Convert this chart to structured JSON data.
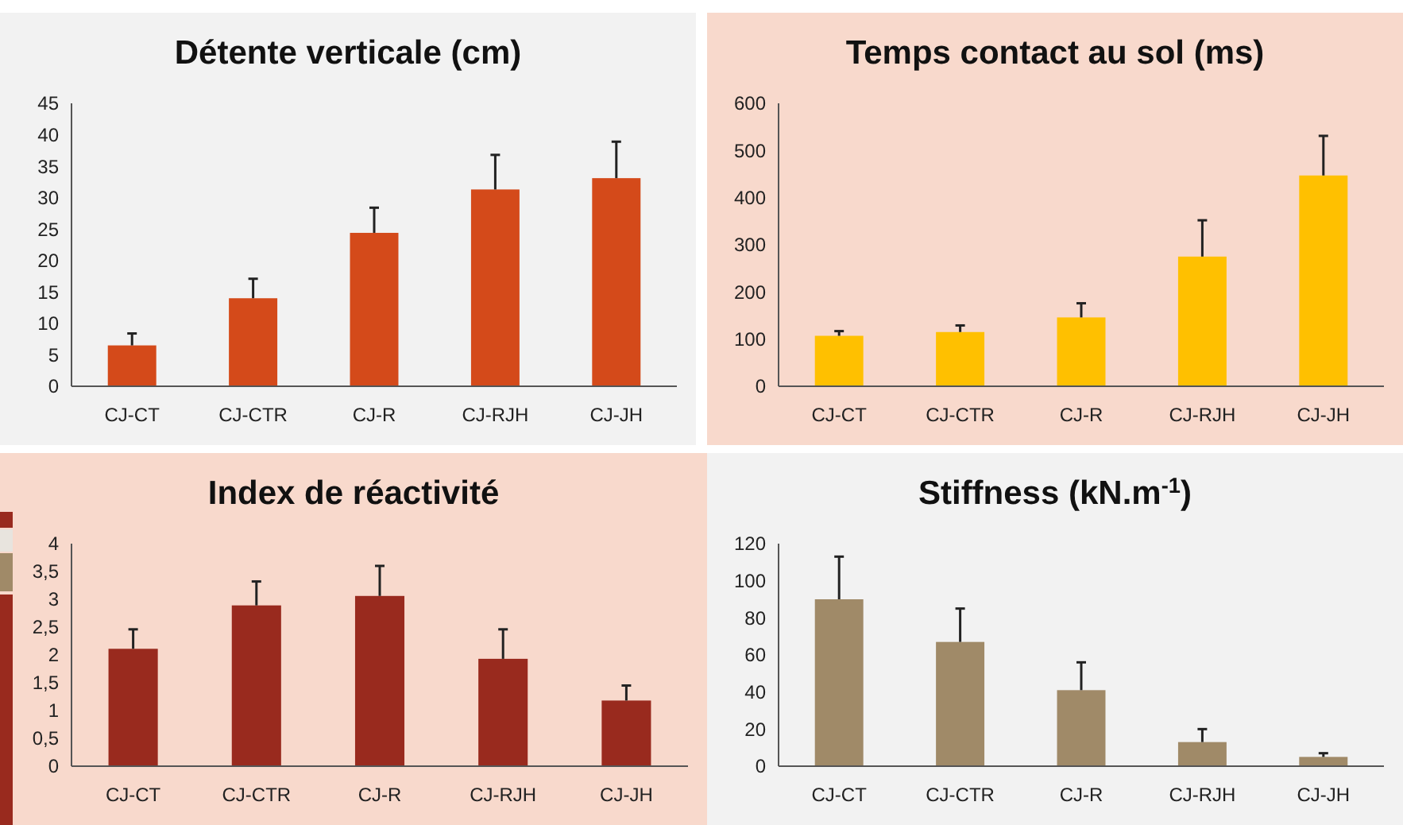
{
  "chart_data": [
    {
      "type": "bar",
      "title": "Détente verticale (cm)",
      "categories": [
        "CJ-CT",
        "CJ-CTR",
        "CJ-R",
        "CJ-RJH",
        "CJ-JH"
      ],
      "values": [
        6.5,
        14.0,
        24.4,
        31.3,
        33.1
      ],
      "errors": [
        [
          6.5,
          8.4
        ],
        [
          14.0,
          17.1
        ],
        [
          24.4,
          28.4
        ],
        [
          31.3,
          36.8
        ],
        [
          33.1,
          38.9
        ]
      ],
      "color": "#d44a1a",
      "ylim": [
        0,
        45
      ],
      "yticks": [
        0,
        5,
        10,
        15,
        20,
        25,
        30,
        35,
        40,
        45
      ]
    },
    {
      "type": "bar",
      "title": "Temps contact au sol (ms)",
      "categories": [
        "CJ-CT",
        "CJ-CTR",
        "CJ-R",
        "CJ-RJH",
        "CJ-JH"
      ],
      "values": [
        107,
        115,
        146,
        275,
        447
      ],
      "errors": [
        [
          107,
          117
        ],
        [
          115,
          129
        ],
        [
          146,
          176
        ],
        [
          275,
          352
        ],
        [
          447,
          531
        ]
      ],
      "color": "#ffc000",
      "ylim": [
        0,
        600
      ],
      "yticks": [
        0,
        100,
        200,
        300,
        400,
        500,
        600
      ]
    },
    {
      "type": "bar",
      "title": "Index de réactivité",
      "categories": [
        "CJ-CT",
        "CJ-CTR",
        "CJ-R",
        "CJ-RJH",
        "CJ-JH"
      ],
      "values": [
        2.11,
        2.89,
        3.06,
        1.93,
        1.18
      ],
      "errors": [
        [
          2.11,
          2.46
        ],
        [
          2.89,
          3.32
        ],
        [
          3.06,
          3.6
        ],
        [
          1.93,
          2.46
        ],
        [
          1.18,
          1.45
        ]
      ],
      "color": "#992a1e",
      "ylim": [
        0,
        4
      ],
      "yticks": [
        0,
        {
          "value": 0.5,
          "label": "0,5"
        },
        1,
        {
          "value": 1.5,
          "label": "1,5"
        },
        2,
        {
          "value": 2.5,
          "label": "2,5"
        },
        3,
        {
          "value": 3.5,
          "label": "3,5"
        },
        4
      ]
    },
    {
      "type": "bar",
      "title": "Stiffness (kN.m$^{-1}$)",
      "categories": [
        "CJ-CT",
        "CJ-CTR",
        "CJ-R",
        "CJ-RJH",
        "CJ-JH"
      ],
      "values": [
        90,
        67,
        41,
        13,
        5
      ],
      "errors": [
        [
          90,
          113
        ],
        [
          67,
          85
        ],
        [
          41,
          56
        ],
        [
          13,
          20
        ],
        [
          5,
          7
        ]
      ],
      "color": "#a08a68",
      "ylim": [
        0,
        120
      ],
      "yticks": [
        0,
        20,
        40,
        60,
        80,
        100,
        120
      ]
    }
  ]
}
